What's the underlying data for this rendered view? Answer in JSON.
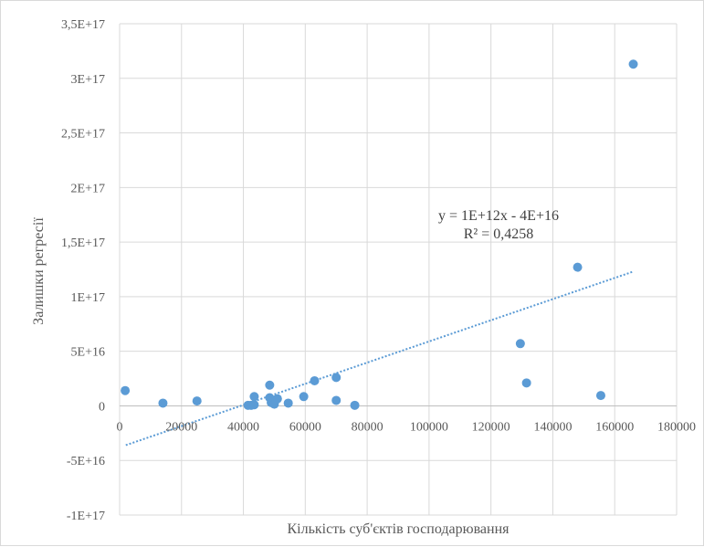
{
  "chart_data": {
    "type": "scatter",
    "title": "",
    "xlabel": "Кількість суб'єктів  господарювання",
    "ylabel": "Залишки регресії",
    "xlim": [
      0,
      180000
    ],
    "ylim": [
      -1e+17,
      3.5e+17
    ],
    "grid": true,
    "x_ticks": [
      0,
      20000,
      40000,
      60000,
      80000,
      100000,
      120000,
      140000,
      160000,
      180000
    ],
    "x_tick_labels": [
      "0",
      "20000",
      "40000",
      "60000",
      "80000",
      "100000",
      "120000",
      "140000",
      "160000",
      "180000"
    ],
    "y_ticks": [
      -1e+17,
      -5e+16,
      0,
      5e+16,
      1e+17,
      1.5e+17,
      2e+17,
      2.5e+17,
      3e+17,
      3.5e+17
    ],
    "y_tick_labels": [
      "-1E+17",
      "-5E+16",
      "0",
      "5E+16",
      "1E+17",
      "1,5E+17",
      "2E+17",
      "2,5E+17",
      "3E+17",
      "3,5E+17"
    ],
    "marker_color": "#5b9bd5",
    "trendline_color": "#5b9bd5",
    "points": [
      {
        "x": 1800,
        "y": 1.4e+16
      },
      {
        "x": 14000,
        "y": 2500000000000000.0
      },
      {
        "x": 25000,
        "y": 4500000000000000.0
      },
      {
        "x": 41500,
        "y": 500000000000000.0
      },
      {
        "x": 42500,
        "y": 500000000000000.0
      },
      {
        "x": 43500,
        "y": 8500000000000000.0
      },
      {
        "x": 43500,
        "y": 1000000000000000.0
      },
      {
        "x": 48500,
        "y": 1.9e+16
      },
      {
        "x": 48500,
        "y": 7500000000000000.0
      },
      {
        "x": 49000,
        "y": 3000000000000000.0
      },
      {
        "x": 50000,
        "y": 1500000000000000.0
      },
      {
        "x": 50500,
        "y": 5500000000000000.0
      },
      {
        "x": 51000,
        "y": 6500000000000000.0
      },
      {
        "x": 54500,
        "y": 2500000000000000.0
      },
      {
        "x": 59500,
        "y": 8500000000000000.0
      },
      {
        "x": 63000,
        "y": 2.3e+16
      },
      {
        "x": 70000,
        "y": 2.6e+16
      },
      {
        "x": 70000,
        "y": 5000000000000000.0
      },
      {
        "x": 76000,
        "y": 500000000000000.0
      },
      {
        "x": 129500,
        "y": 5.7e+16
      },
      {
        "x": 131500,
        "y": 2.1e+16
      },
      {
        "x": 148000,
        "y": 1.27e+17
      },
      {
        "x": 155500,
        "y": 9500000000000000.0
      },
      {
        "x": 166000,
        "y": 3.13e+17
      }
    ],
    "trendline": {
      "type": "linear",
      "x_range": [
        2000,
        166000
      ],
      "y_range": [
        -3.6e+16,
        1.23e+17
      ],
      "equation": "y = 1E+12x - 4E+16",
      "r_squared": "R² = 0,4258"
    }
  }
}
